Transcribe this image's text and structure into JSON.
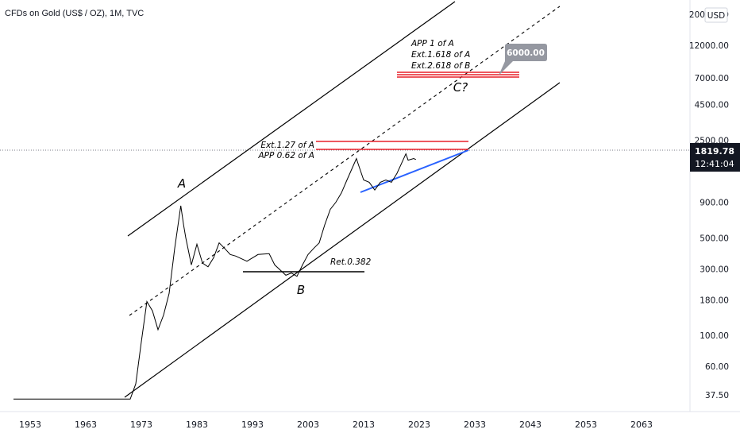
{
  "header": {
    "title": "CFDs on Gold (US$ / OZ), 1M, TVC"
  },
  "price_axis": {
    "currency": "USD",
    "current_price": "1819.78",
    "countdown": "12:41:04",
    "tag_color": "#131722"
  },
  "chart_data": {
    "type": "line",
    "scale": "log",
    "x_ticks": [
      "1953",
      "1963",
      "1973",
      "1983",
      "1993",
      "2003",
      "2013",
      "2023",
      "2033",
      "2043",
      "2053",
      "2063"
    ],
    "y_ticks": [
      20000,
      12000,
      7000,
      4500,
      2500,
      900,
      500,
      300,
      180,
      100,
      60,
      37.5
    ],
    "y_tick_labels": [
      "20000.00",
      "12000.00",
      "7000.00",
      "4500.00",
      "2500.00",
      "900.00",
      "500.00",
      "300.00",
      "180.00",
      "100.00",
      "60.00",
      "37.50"
    ],
    "series": [
      {
        "values": [
          [
            1950,
            35
          ],
          [
            1971,
            35
          ],
          [
            1972,
            45
          ],
          [
            1973,
            90
          ],
          [
            1974,
            175
          ],
          [
            1975,
            150
          ],
          [
            1976,
            110
          ],
          [
            1977,
            140
          ],
          [
            1978,
            200
          ],
          [
            1979,
            420
          ],
          [
            1980.1,
            850
          ],
          [
            1980.6,
            620
          ],
          [
            1981,
            500
          ],
          [
            1982,
            320
          ],
          [
            1983,
            450
          ],
          [
            1984,
            330
          ],
          [
            1985,
            310
          ],
          [
            1986,
            360
          ],
          [
            1987,
            460
          ],
          [
            1988,
            420
          ],
          [
            1989,
            380
          ],
          [
            1990,
            370
          ],
          [
            1992,
            340
          ],
          [
            1994,
            380
          ],
          [
            1996,
            385
          ],
          [
            1997,
            320
          ],
          [
            1999,
            270
          ],
          [
            2000,
            280
          ],
          [
            2001,
            265
          ],
          [
            2002,
            320
          ],
          [
            2003,
            380
          ],
          [
            2004,
            420
          ],
          [
            2005,
            460
          ],
          [
            2006,
            620
          ],
          [
            2007,
            800
          ],
          [
            2008,
            900
          ],
          [
            2009,
            1050
          ],
          [
            2010,
            1300
          ],
          [
            2011.7,
            1850
          ],
          [
            2012,
            1700
          ],
          [
            2013,
            1300
          ],
          [
            2014,
            1250
          ],
          [
            2015,
            1100
          ],
          [
            2016,
            1250
          ],
          [
            2017,
            1300
          ],
          [
            2018,
            1250
          ],
          [
            2019,
            1450
          ],
          [
            2020.6,
            2000
          ],
          [
            2021,
            1800
          ],
          [
            2022,
            1850
          ],
          [
            2022.4,
            1820
          ]
        ]
      }
    ],
    "annotations": {
      "waves": [
        "A",
        "B",
        "C?"
      ],
      "retracement": "Ret.0.382",
      "upper_labels": [
        "Ext.1.27 of A",
        "APP 0.62 of A"
      ],
      "target_labels": [
        "APP 1 of A",
        "Ext.1.618 of A",
        "Ext.2.618 of B"
      ],
      "target_price": "6000.00",
      "colors": {
        "fib": "#e8202a",
        "trend": "#2962ff",
        "channel": "#000000",
        "label_box": "#9598a1"
      }
    }
  }
}
